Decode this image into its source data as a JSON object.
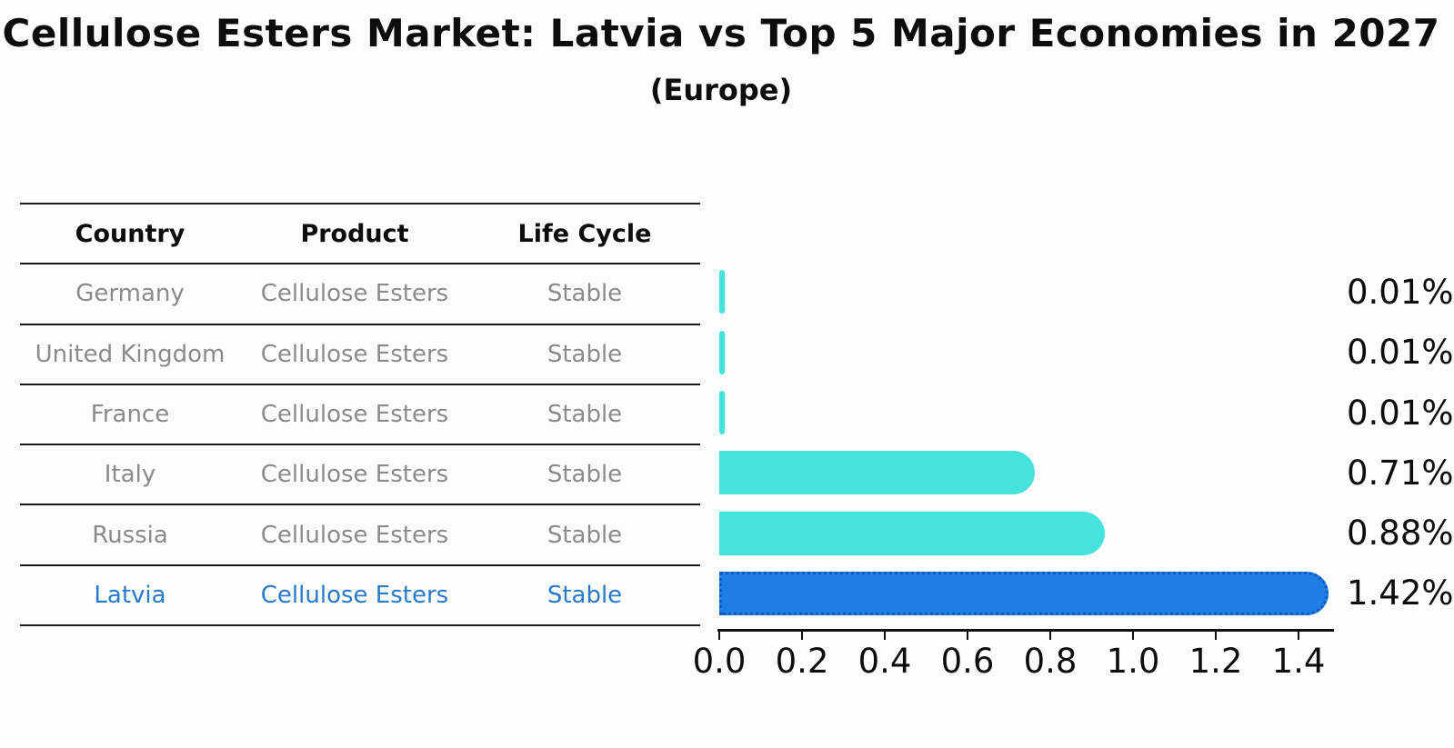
{
  "title": "Cellulose Esters Market: Latvia vs Top 5 Major Economies in 2027",
  "subtitle": "(Europe)",
  "table": {
    "headers": [
      "Country",
      "Product",
      "Life Cycle"
    ]
  },
  "rows": [
    {
      "country": "Germany",
      "product": "Cellulose Esters",
      "life_cycle": "Stable",
      "value": 0.01,
      "value_label": "0.01%",
      "highlight": false
    },
    {
      "country": "United Kingdom",
      "product": "Cellulose Esters",
      "life_cycle": "Stable",
      "value": 0.01,
      "value_label": "0.01%",
      "highlight": false
    },
    {
      "country": "France",
      "product": "Cellulose Esters",
      "life_cycle": "Stable",
      "value": 0.01,
      "value_label": "0.01%",
      "highlight": false
    },
    {
      "country": "Italy",
      "product": "Cellulose Esters",
      "life_cycle": "Stable",
      "value": 0.71,
      "value_label": "0.71%",
      "highlight": false
    },
    {
      "country": "Russia",
      "product": "Cellulose Esters",
      "life_cycle": "Stable",
      "value": 0.88,
      "value_label": "0.88%",
      "highlight": false
    },
    {
      "country": "Latvia",
      "product": "Cellulose Esters",
      "life_cycle": "Stable",
      "value": 1.42,
      "value_label": "1.42%",
      "highlight": true
    }
  ],
  "chart_data": {
    "type": "bar",
    "orientation": "horizontal",
    "title": "Cellulose Esters Market: Latvia vs Top 5 Major Economies in 2027",
    "subtitle": "(Europe)",
    "categories": [
      "Germany",
      "United Kingdom",
      "France",
      "Italy",
      "Russia",
      "Latvia"
    ],
    "values": [
      0.01,
      0.01,
      0.01,
      0.71,
      0.88,
      1.42
    ],
    "value_labels": [
      "0.01%",
      "0.01%",
      "0.01%",
      "0.71%",
      "0.88%",
      "1.42%"
    ],
    "x_ticks": [
      "0.0",
      "0.2",
      "0.4",
      "0.6",
      "0.8",
      "1.0",
      "1.2",
      "1.4"
    ],
    "xlim": [
      0,
      1.49
    ],
    "grid": false,
    "legend": false,
    "highlight_category": "Latvia",
    "colors": {
      "bar_default": "#46e3dc",
      "bar_highlight": "#1f7ee6",
      "bar_highlight_border": "#1257c4",
      "highlight_text": "#2b7ac9",
      "cell_text": "#8b8b8b",
      "header_text": "#0d0d0d",
      "background": "#fbfcfc"
    }
  }
}
